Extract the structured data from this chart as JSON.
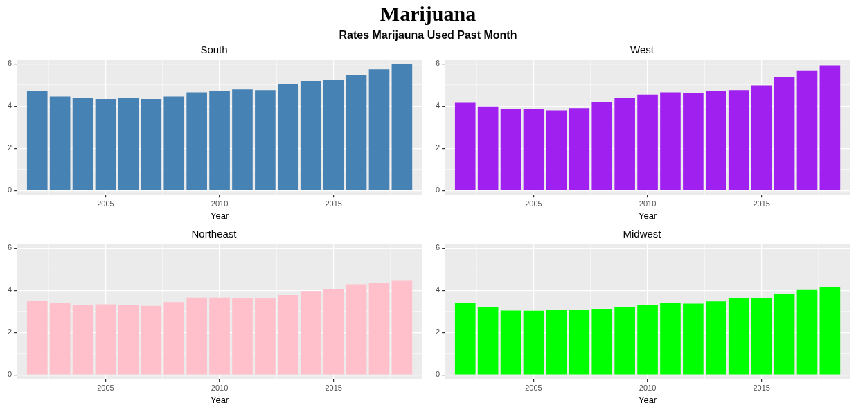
{
  "chart_data": [
    {
      "type": "bar",
      "title": "South",
      "xlabel": "Year",
      "annotations": [
        "Marijuana",
        "Rates Marijauna Used Past Month"
      ],
      "x": [
        2002,
        2003,
        2004,
        2005,
        2006,
        2007,
        2008,
        2009,
        2010,
        2011,
        2012,
        2013,
        2014,
        2015,
        2016,
        2017,
        2018
      ],
      "values": [
        4.7,
        4.45,
        4.37,
        4.33,
        4.36,
        4.33,
        4.45,
        4.64,
        4.69,
        4.78,
        4.75,
        5.02,
        5.18,
        5.23,
        5.48,
        5.73,
        5.97
      ],
      "color": "#4682b4",
      "xlim": [
        2001.1,
        2018.9
      ],
      "xticks": [
        2005,
        2010,
        2015
      ],
      "ylim": [
        -0.2,
        6.2
      ],
      "yticks": [
        0,
        2,
        4,
        6
      ],
      "grid": true,
      "legend": false
    },
    {
      "type": "bar",
      "title": "West",
      "xlabel": "Year",
      "x": [
        2002,
        2003,
        2004,
        2005,
        2006,
        2007,
        2008,
        2009,
        2010,
        2011,
        2012,
        2013,
        2014,
        2015,
        2016,
        2017,
        2018
      ],
      "values": [
        4.15,
        3.98,
        3.85,
        3.84,
        3.79,
        3.9,
        4.17,
        4.37,
        4.54,
        4.64,
        4.62,
        4.72,
        4.75,
        4.97,
        5.38,
        5.68,
        5.92
      ],
      "color": "#a020f0",
      "xlim": [
        2001.1,
        2018.9
      ],
      "xticks": [
        2005,
        2010,
        2015
      ],
      "ylim": [
        -0.2,
        6.2
      ],
      "yticks": [
        0,
        2,
        4,
        6
      ],
      "grid": true,
      "legend": false
    },
    {
      "type": "bar",
      "title": "Northeast",
      "xlabel": "Year",
      "x": [
        2002,
        2003,
        2004,
        2005,
        2006,
        2007,
        2008,
        2009,
        2010,
        2011,
        2012,
        2013,
        2014,
        2015,
        2016,
        2017,
        2018
      ],
      "values": [
        3.5,
        3.39,
        3.31,
        3.33,
        3.28,
        3.26,
        3.44,
        3.65,
        3.65,
        3.63,
        3.61,
        3.77,
        3.96,
        4.07,
        4.28,
        4.34,
        4.45
      ],
      "color": "#ffc0cb",
      "xlim": [
        2001.1,
        2018.9
      ],
      "xticks": [
        2005,
        2010,
        2015
      ],
      "ylim": [
        -0.2,
        6.2
      ],
      "yticks": [
        0,
        2,
        4,
        6
      ],
      "grid": true,
      "legend": false
    },
    {
      "type": "bar",
      "title": "Midwest",
      "xlabel": "Year",
      "x": [
        2002,
        2003,
        2004,
        2005,
        2006,
        2007,
        2008,
        2009,
        2010,
        2011,
        2012,
        2013,
        2014,
        2015,
        2016,
        2017,
        2018
      ],
      "values": [
        3.39,
        3.2,
        3.04,
        3.03,
        3.06,
        3.06,
        3.12,
        3.2,
        3.31,
        3.38,
        3.36,
        3.47,
        3.63,
        3.63,
        3.82,
        4.01,
        4.15
      ],
      "color": "#00ff00",
      "xlim": [
        2001.1,
        2018.9
      ],
      "xticks": [
        2005,
        2010,
        2015
      ],
      "ylim": [
        -0.2,
        6.2
      ],
      "yticks": [
        0,
        2,
        4,
        6
      ],
      "grid": true,
      "legend": false
    }
  ]
}
